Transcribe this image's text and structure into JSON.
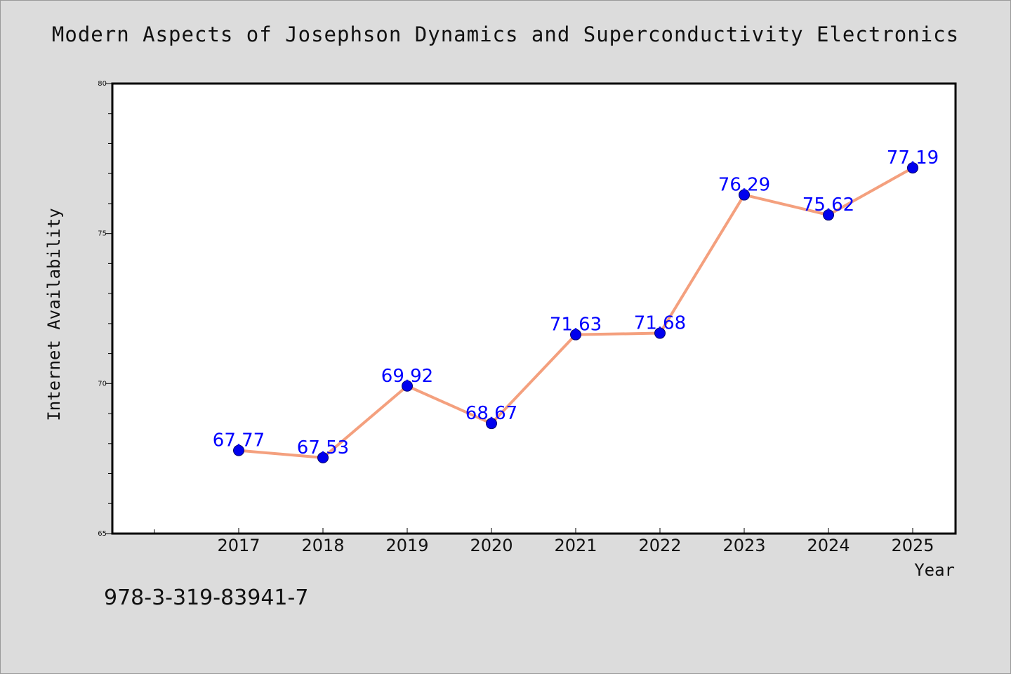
{
  "title": "Modern Aspects of Josephson Dynamics and Superconductivity Electronics",
  "isbn": "978-3-319-83941-7",
  "chart_data": {
    "type": "line",
    "title": "Modern Aspects of Josephson Dynamics and Superconductivity Electronics",
    "xlabel": "Year",
    "ylabel": "Internet Availability",
    "categories": [
      "2017",
      "2018",
      "2019",
      "2020",
      "2021",
      "2022",
      "2023",
      "2024",
      "2025"
    ],
    "series": [
      {
        "values": [
          67.77,
          67.53,
          69.92,
          68.67,
          71.63,
          71.68,
          76.29,
          75.62,
          77.19
        ]
      }
    ],
    "value_labels": [
      "67.77",
      "67.53",
      "69.92",
      "68.67",
      "71.63",
      "71.68",
      "76.29",
      "75.62",
      "77.19"
    ],
    "ylim": [
      65,
      80
    ],
    "yticks": [
      65,
      70,
      75,
      80
    ],
    "ytick_labels": [
      "65",
      "70",
      "75",
      "80"
    ],
    "grid": false,
    "legend": "none",
    "line_color": "#f4a07e",
    "marker_color": "#0000ee",
    "label_color": "#0000ff"
  }
}
